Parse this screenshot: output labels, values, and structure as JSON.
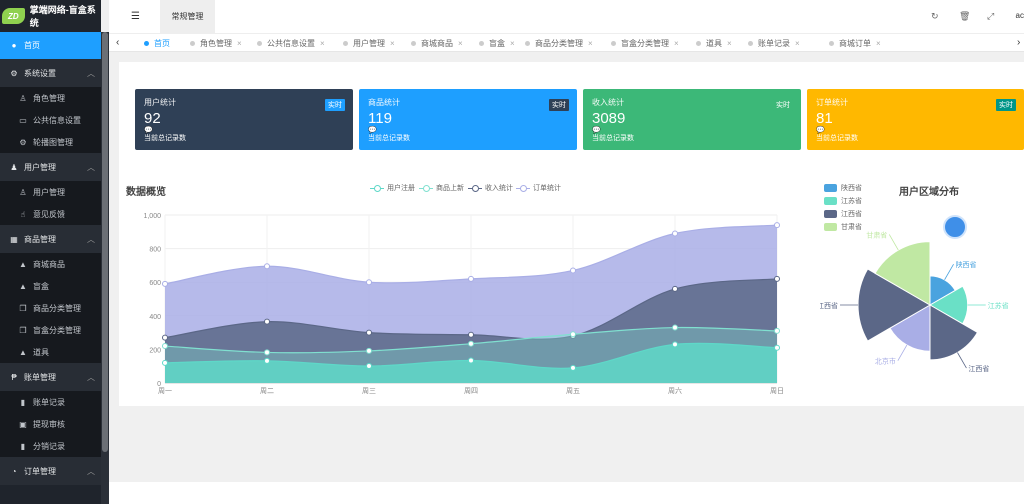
{
  "app": {
    "logo_text": "ZD",
    "title": "掌端网络-盲盒系统"
  },
  "sidebar": {
    "home": "首页",
    "groups": [
      {
        "label": "系统设置",
        "items": [
          "角色管理",
          "公共信息设置",
          "轮播图管理"
        ]
      },
      {
        "label": "用户管理",
        "items": [
          "用户管理",
          "意见反馈"
        ]
      },
      {
        "label": "商品管理",
        "items": [
          "商城商品",
          "盲盒",
          "商品分类管理",
          "盲盒分类管理",
          "道具"
        ]
      },
      {
        "label": "账单管理",
        "items": [
          "账单记录",
          "提现审核",
          "分销记录"
        ]
      },
      {
        "label": "订单管理",
        "items": []
      }
    ]
  },
  "header": {
    "tab": "常规管理",
    "user_cut": "ac"
  },
  "tabs": [
    "首页",
    "角色管理",
    "公共信息设置",
    "用户管理",
    "商城商品",
    "盲盒",
    "商品分类管理",
    "盲盒分类管理",
    "道具",
    "账单记录",
    "商城订单"
  ],
  "cards": [
    {
      "title": "用户统计",
      "badge": "实时",
      "value": "92",
      "foot": "当前总记录数",
      "color": "#2f4056",
      "badge_color": "#1e9fff"
    },
    {
      "title": "商品统计",
      "badge": "实时",
      "value": "119",
      "foot": "当前总记录数",
      "color": "#1e9fff",
      "badge_color": "#2f4056"
    },
    {
      "title": "收入统计",
      "badge": "实时",
      "value": "3089",
      "foot": "当前总记录数",
      "color": "#3cb878",
      "badge_color": "#3cb878"
    },
    {
      "title": "订单统计",
      "badge": "实时",
      "value": "81",
      "foot": "当前总记录数",
      "color": "#ffb800",
      "badge_color": "#009688"
    }
  ],
  "chart_data": [
    {
      "type": "area",
      "title": "数据概览",
      "categories": [
        "周一",
        "周二",
        "周三",
        "周四",
        "周五",
        "周六",
        "周日"
      ],
      "ylim": [
        0,
        1000
      ],
      "yticks": [
        "0",
        "200",
        "400",
        "600",
        "800",
        "1,000"
      ],
      "series": [
        {
          "name": "用户注册",
          "values": [
            120,
            132,
            101,
            134,
            90,
            230,
            210
          ],
          "color": "#5ed8c8"
        },
        {
          "name": "商品上新",
          "values": [
            220,
            182,
            191,
            234,
            290,
            330,
            310
          ],
          "color": "#80e0d0"
        },
        {
          "name": "收入统计",
          "values": [
            270,
            365,
            300,
            287,
            280,
            560,
            620
          ],
          "color": "#5b6787"
        },
        {
          "name": "订单统计",
          "values": [
            590,
            695,
            600,
            620,
            670,
            890,
            940
          ],
          "color": "#a9aee6"
        }
      ]
    },
    {
      "type": "pie",
      "title": "用户区域分布",
      "legend": [
        {
          "name": "陕西省",
          "color": "#4aa3df"
        },
        {
          "name": "江苏省",
          "color": "#6ae0c6"
        },
        {
          "name": "江西省",
          "color": "#5b6787"
        },
        {
          "name": "甘肃省",
          "color": "#c0e8a3"
        }
      ],
      "slices": [
        {
          "name": "陕西省",
          "value": 10,
          "color": "#4aa3df"
        },
        {
          "name": "江苏省",
          "value": 15,
          "color": "#6ae0c6"
        },
        {
          "name": "江西省",
          "value": 25,
          "color": "#5b6787"
        },
        {
          "name": "北京市",
          "value": 20,
          "color": "#a9aee6"
        },
        {
          "name": "江西省",
          "value": 35,
          "color": "#5b6787"
        },
        {
          "name": "甘肃省",
          "value": 30,
          "color": "#c0e8a3"
        }
      ]
    }
  ]
}
